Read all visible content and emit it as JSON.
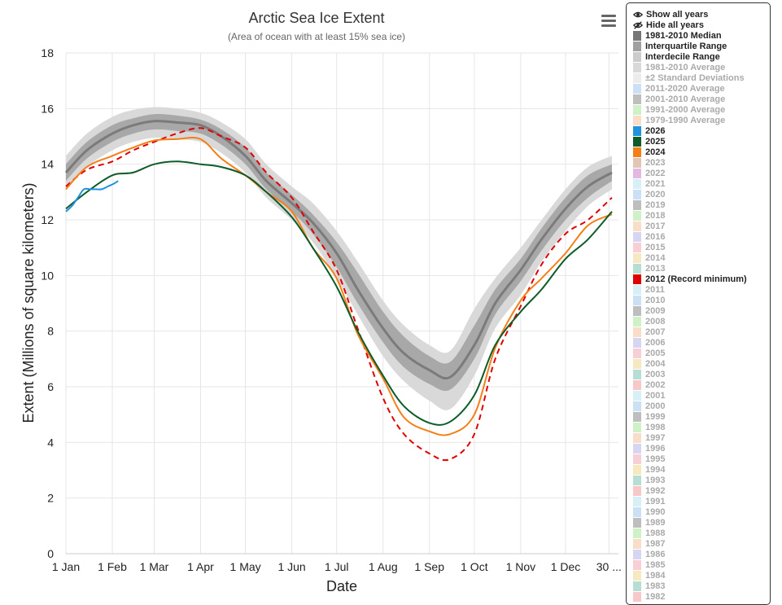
{
  "legend_controls": {
    "show_all": "Show all years",
    "hide_all": "Hide all years"
  },
  "legend_items": [
    {
      "label": "1981-2010 Median",
      "color": "#777777",
      "active": true
    },
    {
      "label": "Interquartile Range",
      "color": "#a0a0a0",
      "active": true
    },
    {
      "label": "Interdecile Range",
      "color": "#cccccc",
      "active": true
    },
    {
      "label": "1981-2010 Average",
      "color": "#cccccc",
      "active": false
    },
    {
      "label": "±2 Standard Deviations",
      "color": "#e6e6e6",
      "active": false
    },
    {
      "label": "2011-2020 Average",
      "color": "#b9d6f2",
      "active": false
    },
    {
      "label": "2001-2010 Average",
      "color": "#a8a8a8",
      "active": false
    },
    {
      "label": "1991-2000 Average",
      "color": "#bdecb6",
      "active": false
    },
    {
      "label": "1979-1990 Average",
      "color": "#f7d2b5",
      "active": false
    },
    {
      "label": "2026",
      "color": "#1f93dc",
      "active": true
    },
    {
      "label": "2025",
      "color": "#0d5c2a",
      "active": true
    },
    {
      "label": "2024",
      "color": "#f57f17",
      "active": true
    },
    {
      "label": "2023",
      "color": "#d9b2a0",
      "active": false
    },
    {
      "label": "2022",
      "color": "#d9a0d9",
      "active": false
    },
    {
      "label": "2021",
      "color": "#c8ecf3",
      "active": false
    },
    {
      "label": "2020",
      "color": "#b9d6f2",
      "active": false
    },
    {
      "label": "2019",
      "color": "#a8a8a8",
      "active": false
    },
    {
      "label": "2018",
      "color": "#bdecb6",
      "active": false
    },
    {
      "label": "2017",
      "color": "#f7d2b5",
      "active": false
    },
    {
      "label": "2016",
      "color": "#c8c8f0",
      "active": false
    },
    {
      "label": "2015",
      "color": "#f5bfc8",
      "active": false
    },
    {
      "label": "2014",
      "color": "#f3e2a9",
      "active": false
    },
    {
      "label": "2013",
      "color": "#9fd3c7",
      "active": false
    },
    {
      "label": "2012 (Record minimum)",
      "color": "#e00000",
      "active": true
    },
    {
      "label": "2011",
      "color": "#c8ecf3",
      "active": false
    },
    {
      "label": "2010",
      "color": "#b9d6f2",
      "active": false
    },
    {
      "label": "2009",
      "color": "#a8a8a8",
      "active": false
    },
    {
      "label": "2008",
      "color": "#bdecb6",
      "active": false
    },
    {
      "label": "2007",
      "color": "#f7d2b5",
      "active": false
    },
    {
      "label": "2006",
      "color": "#c8c8f0",
      "active": false
    },
    {
      "label": "2005",
      "color": "#f5bfc8",
      "active": false
    },
    {
      "label": "2004",
      "color": "#f3e2a9",
      "active": false
    },
    {
      "label": "2003",
      "color": "#9fd3c7",
      "active": false
    },
    {
      "label": "2002",
      "color": "#f5b5b5",
      "active": false
    },
    {
      "label": "2001",
      "color": "#c8ecf3",
      "active": false
    },
    {
      "label": "2000",
      "color": "#b9d6f2",
      "active": false
    },
    {
      "label": "1999",
      "color": "#a8a8a8",
      "active": false
    },
    {
      "label": "1998",
      "color": "#bdecb6",
      "active": false
    },
    {
      "label": "1997",
      "color": "#f7d2b5",
      "active": false
    },
    {
      "label": "1996",
      "color": "#c8c8f0",
      "active": false
    },
    {
      "label": "1995",
      "color": "#f5bfc8",
      "active": false
    },
    {
      "label": "1994",
      "color": "#f3e2a9",
      "active": false
    },
    {
      "label": "1993",
      "color": "#9fd3c7",
      "active": false
    },
    {
      "label": "1992",
      "color": "#f5b5b5",
      "active": false
    },
    {
      "label": "1991",
      "color": "#c8ecf3",
      "active": false
    },
    {
      "label": "1990",
      "color": "#b9d6f2",
      "active": false
    },
    {
      "label": "1989",
      "color": "#a8a8a8",
      "active": false
    },
    {
      "label": "1988",
      "color": "#bdecb6",
      "active": false
    },
    {
      "label": "1987",
      "color": "#f7d2b5",
      "active": false
    },
    {
      "label": "1986",
      "color": "#c8c8f0",
      "active": false
    },
    {
      "label": "1985",
      "color": "#f5bfc8",
      "active": false
    },
    {
      "label": "1984",
      "color": "#f3e2a9",
      "active": false
    },
    {
      "label": "1983",
      "color": "#9fd3c7",
      "active": false
    },
    {
      "label": "1982",
      "color": "#f5b5b5",
      "active": false
    }
  ],
  "chart_data": {
    "type": "line",
    "title": "Arctic Sea Ice Extent",
    "subtitle": "(Area of ocean with at least 15% sea ice)",
    "xlabel": "Date",
    "ylabel": "Extent (Millions of square kilometers)",
    "ylim": [
      0,
      18
    ],
    "yticks": [
      0,
      2,
      4,
      6,
      8,
      10,
      12,
      14,
      16,
      18
    ],
    "xlim": [
      1,
      366
    ],
    "xticks": [
      {
        "day": 1,
        "label": "1 Jan"
      },
      {
        "day": 32,
        "label": "1 Feb"
      },
      {
        "day": 60,
        "label": "1 Mar"
      },
      {
        "day": 91,
        "label": "1 Apr"
      },
      {
        "day": 121,
        "label": "1 May"
      },
      {
        "day": 152,
        "label": "1 Jun"
      },
      {
        "day": 182,
        "label": "1 Jul"
      },
      {
        "day": 213,
        "label": "1 Aug"
      },
      {
        "day": 244,
        "label": "1 Sep"
      },
      {
        "day": 274,
        "label": "1 Oct"
      },
      {
        "day": 305,
        "label": "1 Nov"
      },
      {
        "day": 335,
        "label": "1 Dec"
      },
      {
        "day": 364,
        "label": "30 ..."
      }
    ],
    "grid": true,
    "days": [
      1,
      15,
      32,
      46,
      60,
      75,
      91,
      105,
      121,
      135,
      152,
      166,
      182,
      196,
      213,
      227,
      244,
      258,
      274,
      288,
      305,
      319,
      335,
      350,
      366
    ],
    "median_1981_2010": [
      13.7,
      14.5,
      15.1,
      15.4,
      15.55,
      15.5,
      15.4,
      15.0,
      14.3,
      13.4,
      12.6,
      11.9,
      10.8,
      9.5,
      8.1,
      7.2,
      6.6,
      6.35,
      7.5,
      9.0,
      10.2,
      11.3,
      12.4,
      13.2,
      13.7
    ],
    "interquartile_range": [
      [
        13.4,
        14.0
      ],
      [
        14.2,
        14.8
      ],
      [
        14.8,
        15.4
      ],
      [
        15.1,
        15.65
      ],
      [
        15.25,
        15.8
      ],
      [
        15.2,
        15.75
      ],
      [
        15.1,
        15.6
      ],
      [
        14.7,
        15.25
      ],
      [
        14.0,
        14.6
      ],
      [
        13.1,
        13.7
      ],
      [
        12.3,
        12.9
      ],
      [
        11.5,
        12.2
      ],
      [
        10.3,
        11.2
      ],
      [
        9.0,
        10.1
      ],
      [
        7.6,
        8.7
      ],
      [
        6.7,
        7.8
      ],
      [
        6.1,
        7.1
      ],
      [
        5.9,
        6.9
      ],
      [
        7.0,
        8.2
      ],
      [
        8.6,
        9.5
      ],
      [
        9.8,
        10.6
      ],
      [
        10.9,
        11.7
      ],
      [
        12.0,
        12.8
      ],
      [
        12.8,
        13.6
      ],
      [
        13.4,
        14.0
      ]
    ],
    "interdecile_range": [
      [
        13.1,
        14.3
      ],
      [
        13.9,
        15.1
      ],
      [
        14.5,
        15.7
      ],
      [
        14.8,
        15.95
      ],
      [
        14.95,
        16.05
      ],
      [
        14.9,
        16.0
      ],
      [
        14.8,
        15.85
      ],
      [
        14.4,
        15.5
      ],
      [
        13.7,
        14.9
      ],
      [
        12.8,
        14.0
      ],
      [
        12.0,
        13.2
      ],
      [
        11.2,
        12.6
      ],
      [
        9.9,
        11.6
      ],
      [
        8.6,
        10.5
      ],
      [
        7.1,
        9.1
      ],
      [
        6.2,
        8.2
      ],
      [
        5.5,
        7.5
      ],
      [
        5.2,
        7.3
      ],
      [
        6.4,
        8.8
      ],
      [
        8.1,
        9.9
      ],
      [
        9.3,
        11.0
      ],
      [
        10.5,
        12.0
      ],
      [
        11.6,
        13.1
      ],
      [
        12.5,
        13.9
      ],
      [
        13.1,
        14.3
      ]
    ],
    "series": [
      {
        "name": "2026",
        "color": "#1f93dc",
        "dashed": false,
        "days": [
          1,
          5,
          9,
          13,
          17,
          21,
          25,
          29,
          33,
          36
        ],
        "values": [
          12.3,
          12.5,
          12.8,
          13.1,
          13.1,
          13.1,
          13.1,
          13.2,
          13.3,
          13.4
        ]
      },
      {
        "name": "2025",
        "color": "#0d5c2a",
        "dashed": false,
        "days": [
          1,
          15,
          32,
          46,
          60,
          75,
          91,
          105,
          121,
          135,
          152,
          166,
          182,
          196,
          213,
          227,
          244,
          258,
          274,
          288,
          305,
          319,
          335,
          350,
          366
        ],
        "values": [
          12.4,
          13.0,
          13.6,
          13.7,
          14.0,
          14.1,
          14.0,
          13.9,
          13.6,
          13.0,
          12.1,
          11.0,
          9.6,
          8.0,
          6.4,
          5.3,
          4.7,
          4.75,
          5.7,
          7.5,
          8.7,
          9.5,
          10.6,
          11.3,
          12.3
        ]
      },
      {
        "name": "2024",
        "color": "#f57f17",
        "dashed": false,
        "days": [
          1,
          15,
          32,
          46,
          60,
          75,
          91,
          105,
          121,
          135,
          152,
          166,
          182,
          196,
          213,
          227,
          244,
          258,
          274,
          288,
          305,
          319,
          335,
          350,
          366
        ],
        "values": [
          13.1,
          13.9,
          14.3,
          14.6,
          14.85,
          14.9,
          14.9,
          14.2,
          13.6,
          13.0,
          12.3,
          11.0,
          9.9,
          7.9,
          6.3,
          4.9,
          4.4,
          4.3,
          5.0,
          7.4,
          9.1,
          9.9,
          10.8,
          11.8,
          12.2
        ]
      },
      {
        "name": "2012 (Record minimum)",
        "color": "#e00000",
        "dashed": true,
        "days": [
          1,
          15,
          32,
          46,
          60,
          75,
          91,
          105,
          121,
          135,
          152,
          166,
          182,
          196,
          213,
          227,
          244,
          258,
          274,
          288,
          305,
          319,
          335,
          350,
          366
        ],
        "values": [
          13.2,
          13.8,
          14.1,
          14.5,
          14.8,
          15.1,
          15.3,
          15.0,
          14.6,
          13.7,
          12.8,
          11.6,
          10.2,
          8.1,
          5.6,
          4.3,
          3.6,
          3.4,
          4.3,
          7.0,
          8.9,
          10.4,
          11.5,
          12.0,
          12.8
        ]
      }
    ]
  }
}
